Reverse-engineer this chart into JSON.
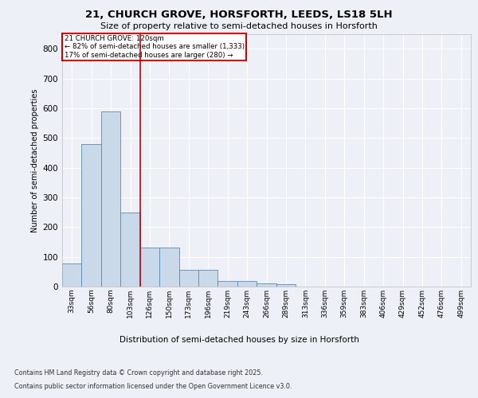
{
  "title1": "21, CHURCH GROVE, HORSFORTH, LEEDS, LS18 5LH",
  "title2": "Size of property relative to semi-detached houses in Horsforth",
  "xlabel": "Distribution of semi-detached houses by size in Horsforth",
  "ylabel": "Number of semi-detached properties",
  "categories": [
    "33sqm",
    "56sqm",
    "80sqm",
    "103sqm",
    "126sqm",
    "150sqm",
    "173sqm",
    "196sqm",
    "219sqm",
    "243sqm",
    "266sqm",
    "289sqm",
    "313sqm",
    "336sqm",
    "359sqm",
    "383sqm",
    "406sqm",
    "429sqm",
    "452sqm",
    "476sqm",
    "499sqm"
  ],
  "values": [
    78,
    480,
    590,
    250,
    130,
    130,
    55,
    55,
    20,
    18,
    12,
    8,
    0,
    0,
    0,
    0,
    0,
    0,
    0,
    0,
    0
  ],
  "bar_color": "#c9d9ea",
  "bar_edge_color": "#5a8ab5",
  "vline_x_index": 3,
  "vline_color": "#cc0000",
  "annotation_title": "21 CHURCH GROVE: 120sqm",
  "annotation_line1": "← 82% of semi-detached houses are smaller (1,333)",
  "annotation_line2": "17% of semi-detached houses are larger (280) →",
  "annotation_box_color": "#cc0000",
  "ylim": [
    0,
    850
  ],
  "yticks": [
    0,
    100,
    200,
    300,
    400,
    500,
    600,
    700,
    800
  ],
  "footer1": "Contains HM Land Registry data © Crown copyright and database right 2025.",
  "footer2": "Contains public sector information licensed under the Open Government Licence v3.0.",
  "bg_color": "#edf1f7",
  "plot_bg_color": "#edf1f7"
}
